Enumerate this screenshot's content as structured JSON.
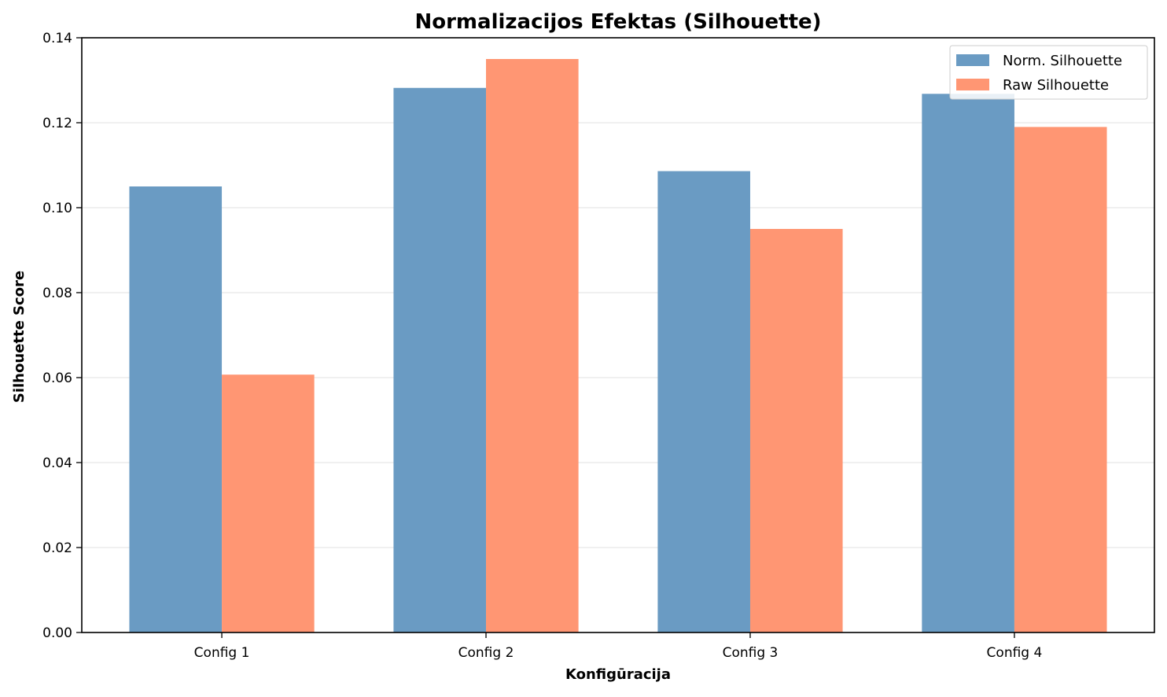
{
  "chart_data": {
    "type": "bar",
    "title": "Normalizacijos Efektas (Silhouette)",
    "xlabel": "Konfigūracija",
    "ylabel": "Silhouette Score",
    "categories": [
      "Config 1",
      "Config 2",
      "Config 3",
      "Config 4"
    ],
    "series": [
      {
        "name": "Norm. Silhouette",
        "values": [
          0.105,
          0.1282,
          0.1086,
          0.1268
        ],
        "color": "#6a9bc3"
      },
      {
        "name": "Raw Silhouette",
        "values": [
          0.0607,
          0.135,
          0.095,
          0.119
        ],
        "color": "#ff9673"
      }
    ],
    "ylim": [
      0,
      0.14
    ],
    "yticks": [
      "0.00",
      "0.02",
      "0.04",
      "0.06",
      "0.08",
      "0.10",
      "0.12",
      "0.14"
    ],
    "grid": "y",
    "legend": "upper right"
  }
}
